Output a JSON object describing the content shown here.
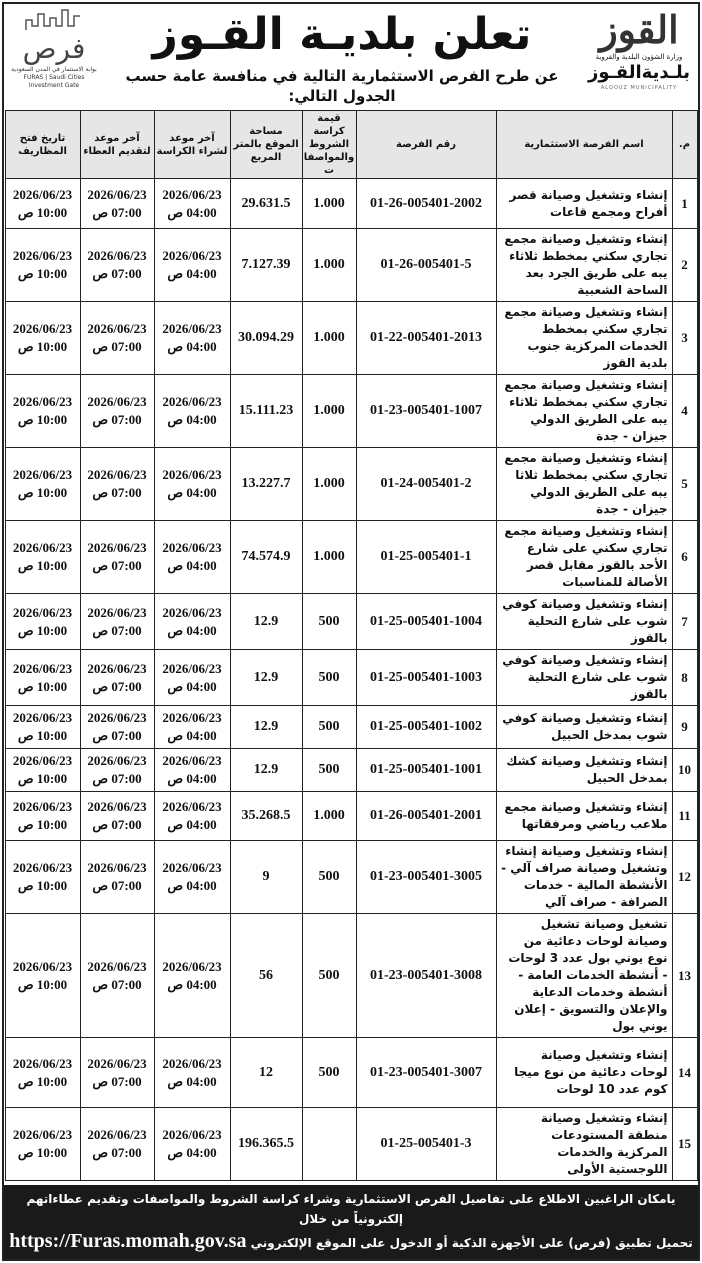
{
  "header": {
    "title": "تعلن بلديـة القـوز",
    "subtitle": "عن طرح الفرص الاستثمارية التالية في منافسة عامة حسب الجدول التالي:",
    "logo_right": {
      "mark": "القوز",
      "ministry": "وزارة الشؤون البلدية والقروية",
      "municipality": "بلـديةالقـوز",
      "english": "ALQOUZ MUNICIPALITY"
    },
    "logo_left": {
      "mark": "فرص",
      "sub_ar": "بوابة الاستثمار في المدن السعودية",
      "sub_en": "FURAS | Saudi Cities Investment Gate"
    }
  },
  "table": {
    "columns": [
      "م.",
      "اسم الفرصة الاستثمارية",
      "رقم الفرصة",
      "قيمة كراسة الشروط والمواصفات",
      "مساحة الموقع بالمتر المربع",
      "آخر موعد لشراء الكراسة",
      "آخر موعد لتقديم العطاء",
      "تاريخ فتح المظاريف"
    ],
    "rows": [
      {
        "no": "1",
        "name": "إنشاء وتشغيل وصيانة قصر أفراح ومجمع قاعات",
        "id": "01-26-005401-2002",
        "fee": "1.000",
        "area": "29.631.5",
        "purchase": [
          "2026/06/23",
          "04:00 ص"
        ],
        "submit": [
          "2026/06/23",
          "07:00 ص"
        ],
        "open": [
          "2026/06/23",
          "10:00 ص"
        ]
      },
      {
        "no": "2",
        "name": "إنشاء وتشغيل وصيانة مجمع تجاري سكني بمخطط ثلاثاء يبه على طريق الجرد بعد الساحة الشعبية",
        "id": "01-26-005401-5",
        "fee": "1.000",
        "area": "7.127.39",
        "purchase": [
          "2026/06/23",
          "04:00 ص"
        ],
        "submit": [
          "2026/06/23",
          "07:00 ص"
        ],
        "open": [
          "2026/06/23",
          "10:00 ص"
        ]
      },
      {
        "no": "3",
        "name": "إنشاء وتشغيل وصيانة مجمع تجاري سكني بمخطط الخدمات المركزية جنوب بلدية القوز",
        "id": "01-22-005401-2013",
        "fee": "1.000",
        "area": "30.094.29",
        "purchase": [
          "2026/06/23",
          "04:00 ص"
        ],
        "submit": [
          "2026/06/23",
          "07:00 ص"
        ],
        "open": [
          "2026/06/23",
          "10:00 ص"
        ]
      },
      {
        "no": "4",
        "name": "إنشاء وتشغيل وصيانة مجمع تجاري سكني بمخطط ثلاثاء يبه على الطريق الدولي جيزان - جدة",
        "id": "01-23-005401-1007",
        "fee": "1.000",
        "area": "15.111.23",
        "purchase": [
          "2026/06/23",
          "04:00 ص"
        ],
        "submit": [
          "2026/06/23",
          "07:00 ص"
        ],
        "open": [
          "2026/06/23",
          "10:00 ص"
        ]
      },
      {
        "no": "5",
        "name": "إنشاء وتشغيل وصيانة مجمع تجاري سكني بمخطط ثلاثا يبه على الطريق الدولي جيزان - جدة",
        "id": "01-24-005401-2",
        "fee": "1.000",
        "area": "13.227.7",
        "purchase": [
          "2026/06/23",
          "04:00 ص"
        ],
        "submit": [
          "2026/06/23",
          "07:00 ص"
        ],
        "open": [
          "2026/06/23",
          "10:00 ص"
        ]
      },
      {
        "no": "6",
        "name": "إنشاء وتشغيل وصيانة مجمع تجاري سكني على شارع الأحد بالقوز مقابل قصر الأصالة للمناسبات",
        "id": "01-25-005401-1",
        "fee": "1.000",
        "area": "74.574.9",
        "purchase": [
          "2026/06/23",
          "04:00 ص"
        ],
        "submit": [
          "2026/06/23",
          "07:00 ص"
        ],
        "open": [
          "2026/06/23",
          "10:00 ص"
        ]
      },
      {
        "no": "7",
        "name": "إنشاء وتشغيل وصيانة كوفي شوب على شارع التحلية بالقوز",
        "id": "01-25-005401-1004",
        "fee": "500",
        "area": "12.9",
        "purchase": [
          "2026/06/23",
          "04:00 ص"
        ],
        "submit": [
          "2026/06/23",
          "07:00 ص"
        ],
        "open": [
          "2026/06/23",
          "10:00 ص"
        ]
      },
      {
        "no": "8",
        "name": "إنشاء وتشغيل وصيانة كوفي شوب على شارع التحلية بالقوز",
        "id": "01-25-005401-1003",
        "fee": "500",
        "area": "12.9",
        "purchase": [
          "2026/06/23",
          "04:00 ص"
        ],
        "submit": [
          "2026/06/23",
          "07:00 ص"
        ],
        "open": [
          "2026/06/23",
          "10:00 ص"
        ]
      },
      {
        "no": "9",
        "name": "إنشاء وتشغيل وصيانة كوفي شوب بمدخل الحبيل",
        "id": "01-25-005401-1002",
        "fee": "500",
        "area": "12.9",
        "purchase": [
          "2026/06/23",
          "04:00 ص"
        ],
        "submit": [
          "2026/06/23",
          "07:00 ص"
        ],
        "open": [
          "2026/06/23",
          "10:00 ص"
        ]
      },
      {
        "no": "10",
        "name": "إنشاء وتشغيل وصيانة كشك بمدخل الحبيل",
        "id": "01-25-005401-1001",
        "fee": "500",
        "area": "12.9",
        "purchase": [
          "2026/06/23",
          "04:00 ص"
        ],
        "submit": [
          "2026/06/23",
          "07:00 ص"
        ],
        "open": [
          "2026/06/23",
          "10:00 ص"
        ]
      },
      {
        "no": "11",
        "name": "إنشاء وتشغيل وصيانة مجمع ملاعب رياضي ومرفقاتها",
        "id": "01-26-005401-2001",
        "fee": "1.000",
        "area": "35.268.5",
        "purchase": [
          "2026/06/23",
          "04:00 ص"
        ],
        "submit": [
          "2026/06/23",
          "07:00 ص"
        ],
        "open": [
          "2026/06/23",
          "10:00 ص"
        ]
      },
      {
        "no": "12",
        "name": "إنشاء وتشغيل وصيانة إنشاء وتشغيل وصيانة صراف آلي - الأنشطة المالية - خدمات الصرافة - صراف آلي",
        "id": "01-23-005401-3005",
        "fee": "500",
        "area": "9",
        "purchase": [
          "2026/06/23",
          "04:00 ص"
        ],
        "submit": [
          "2026/06/23",
          "07:00 ص"
        ],
        "open": [
          "2026/06/23",
          "10:00 ص"
        ]
      },
      {
        "no": "13",
        "name": "تشغيل وصيانة تشغيل وصيانة لوحات دعائية من نوع يوني بول عدد 3 لوحات - أنشطة الخدمات العامة - أنشطة وخدمات الدعاية والإعلان والتسويق - إعلان يوني بول",
        "id": "01-23-005401-3008",
        "fee": "500",
        "area": "56",
        "purchase": [
          "2026/06/23",
          "04:00 ص"
        ],
        "submit": [
          "2026/06/23",
          "07:00 ص"
        ],
        "open": [
          "2026/06/23",
          "10:00 ص"
        ]
      },
      {
        "no": "14",
        "name": "إنشاء وتشغيل وصيانة لوحات دعائية من نوع ميجا كوم عدد 10 لوحات",
        "id": "01-23-005401-3007",
        "fee": "500",
        "area": "12",
        "purchase": [
          "2026/06/23",
          "04:00 ص"
        ],
        "submit": [
          "2026/06/23",
          "07:00 ص"
        ],
        "open": [
          "2026/06/23",
          "10:00 ص"
        ]
      },
      {
        "no": "15",
        "name": "إنشاء وتشغيل وصيانة منطقة المستودعات المركزية والخدمات اللوجستية الأولى",
        "id": "01-25-005401-3",
        "fee": "",
        "area": "196.365.5",
        "purchase": [
          "2026/06/23",
          "04:00 ص"
        ],
        "submit": [
          "2026/06/23",
          "07:00 ص"
        ],
        "open": [
          "2026/06/23",
          "10:00 ص"
        ]
      }
    ]
  },
  "footer": {
    "line1": "يامكان الراغبين الاطلاع على تفاصيل الفرص الاستثمارية وشراء كراسة الشروط والمواصفات وتقديم عطاءاتهم إلكترونياً من خلال",
    "line2": "تحميل تطبيق (فرص) على الأجهزة الذكية أو الدخول على الموقع الإلكتروني",
    "url": "https://Furas.momah.gov.sa"
  }
}
